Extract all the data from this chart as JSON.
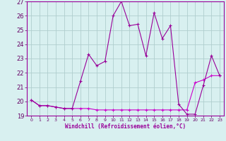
{
  "xlabel": "Windchill (Refroidissement éolien,°C)",
  "x": [
    0,
    1,
    2,
    3,
    4,
    5,
    6,
    7,
    8,
    9,
    10,
    11,
    12,
    13,
    14,
    15,
    16,
    17,
    18,
    19,
    20,
    21,
    22,
    23
  ],
  "line1": [
    20.1,
    19.7,
    19.7,
    19.6,
    19.5,
    19.5,
    21.4,
    23.3,
    22.5,
    22.8,
    26.0,
    27.0,
    25.3,
    25.4,
    23.2,
    26.2,
    24.4,
    25.3,
    19.8,
    19.1,
    19.1,
    21.1,
    23.2,
    21.8
  ],
  "line2": [
    20.1,
    19.7,
    19.7,
    19.6,
    19.5,
    19.5,
    19.5,
    19.5,
    19.4,
    19.4,
    19.4,
    19.4,
    19.4,
    19.4,
    19.4,
    19.4,
    19.4,
    19.4,
    19.4,
    19.4,
    21.3,
    21.5,
    21.8,
    21.8
  ],
  "line_color1": "#990099",
  "line_color2": "#cc00cc",
  "bg_color": "#d8f0f0",
  "grid_color": "#b0cece",
  "axis_color": "#990099",
  "tick_color": "#660066",
  "ylim": [
    19,
    27
  ],
  "yticks": [
    19,
    20,
    21,
    22,
    23,
    24,
    25,
    26,
    27
  ],
  "xticks": [
    0,
    1,
    2,
    3,
    4,
    5,
    6,
    7,
    8,
    9,
    10,
    11,
    12,
    13,
    14,
    15,
    16,
    17,
    18,
    19,
    20,
    21,
    22,
    23
  ],
  "xlim": [
    -0.5,
    23.5
  ]
}
